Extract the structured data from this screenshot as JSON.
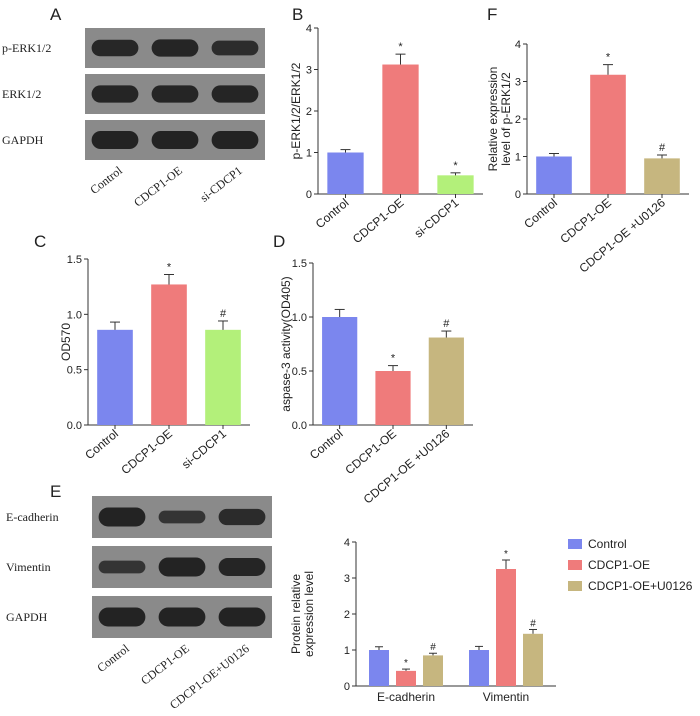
{
  "colors": {
    "blue": "#7b86ee",
    "red": "#ef7b7b",
    "green": "#b3f07a",
    "olive": "#c6b67f",
    "axis": "#333333",
    "blot_bg": "#8a8a8a",
    "band": "#1e1e1e"
  },
  "panels": {
    "A": {
      "letter": "A",
      "rows": [
        {
          "label": "p-ERK1/2",
          "bands": [
            0.8,
            0.85,
            0.7
          ]
        },
        {
          "label": "ERK1/2",
          "bands": [
            0.85,
            0.85,
            0.85
          ]
        },
        {
          "label": "GAPDH",
          "bands": [
            0.9,
            0.9,
            0.9
          ]
        }
      ],
      "lanes": [
        "Control",
        "CDCP1-OE",
        "si-CDCP1"
      ]
    },
    "E": {
      "letter": "E",
      "rows": [
        {
          "label": "E-cadherin",
          "bands": [
            0.9,
            0.55,
            0.75
          ]
        },
        {
          "label": "Vimentin",
          "bands": [
            0.55,
            0.9,
            0.85
          ]
        },
        {
          "label": "GAPDH",
          "bands": [
            0.9,
            0.9,
            0.9
          ]
        }
      ],
      "lanes": [
        "Control",
        "CDCP1-OE",
        "CDCP1-OE+U0126"
      ]
    }
  },
  "chart_data": [
    {
      "panel": "B",
      "type": "bar",
      "categories": [
        "Control",
        "CDCP1-OE",
        "si-CDCP1"
      ],
      "values": [
        1.0,
        3.12,
        0.45
      ],
      "errors": [
        0.07,
        0.25,
        0.06
      ],
      "marks": [
        "",
        "*",
        "*"
      ],
      "colors": [
        "blue",
        "red",
        "green"
      ],
      "ylabel": "p-ERK1/2/ERK1/2",
      "ylim": [
        0,
        4
      ],
      "yticks": [
        "0",
        "1",
        "2",
        "3",
        "4"
      ]
    },
    {
      "panel": "F",
      "type": "bar",
      "categories": [
        "Control",
        "CDCP1-OE",
        "CDCP1-OE +U0126"
      ],
      "values": [
        1.0,
        3.18,
        0.95
      ],
      "errors": [
        0.08,
        0.27,
        0.09
      ],
      "marks": [
        "",
        "*",
        "#"
      ],
      "colors": [
        "blue",
        "red",
        "olive"
      ],
      "ylabel": "Relative expression level of p-ERK1/2",
      "ylabel_lines": [
        "Relative expression",
        "level of p-ERK1/2"
      ],
      "ylim": [
        0,
        4
      ],
      "yticks": [
        "0",
        "1",
        "2",
        "3",
        "4"
      ]
    },
    {
      "panel": "C",
      "type": "bar",
      "categories": [
        "Control",
        "CDCP1-OE",
        "si-CDCP1"
      ],
      "values": [
        0.86,
        1.27,
        0.86
      ],
      "errors": [
        0.07,
        0.09,
        0.08
      ],
      "marks": [
        "",
        "*",
        "#"
      ],
      "colors": [
        "blue",
        "red",
        "green"
      ],
      "ylabel": "OD570",
      "ylim": [
        0,
        1.5
      ],
      "yticks": [
        "0.0",
        "0.5",
        "1.0",
        "1.5"
      ]
    },
    {
      "panel": "D",
      "type": "bar",
      "categories": [
        "Control",
        "CDCP1-OE",
        "CDCP1-OE +U0126"
      ],
      "values": [
        1.0,
        0.5,
        0.81
      ],
      "errors": [
        0.07,
        0.05,
        0.06
      ],
      "marks": [
        "",
        "*",
        "#"
      ],
      "colors": [
        "blue",
        "red",
        "olive"
      ],
      "ylabel": "aspase-3 activity(OD405)",
      "ylim": [
        0,
        1.5
      ],
      "yticks": [
        "0.0",
        "0.5",
        "1.0",
        "1.5"
      ]
    },
    {
      "panel": "E-chart",
      "type": "bar",
      "categories": [
        "E-cadherin",
        "Vimentin"
      ],
      "series": [
        {
          "name": "Control",
          "color": "blue",
          "values": [
            1.0,
            1.0
          ],
          "errors": [
            0.09,
            0.1
          ],
          "marks": [
            "",
            ""
          ]
        },
        {
          "name": "CDCP1-OE",
          "color": "red",
          "values": [
            0.42,
            3.25
          ],
          "errors": [
            0.05,
            0.25
          ],
          "marks": [
            "*",
            "*"
          ]
        },
        {
          "name": "CDCP1-OE+U0126",
          "color": "olive",
          "values": [
            0.85,
            1.45
          ],
          "errors": [
            0.06,
            0.12
          ],
          "marks": [
            "#",
            "#"
          ]
        }
      ],
      "ylabel": "Protein relative expression level",
      "ylabel_lines": [
        "Protein relative",
        "expression level"
      ],
      "ylim": [
        0,
        4
      ],
      "yticks": [
        "0",
        "1",
        "2",
        "3",
        "4"
      ],
      "legend": "top-right"
    }
  ]
}
